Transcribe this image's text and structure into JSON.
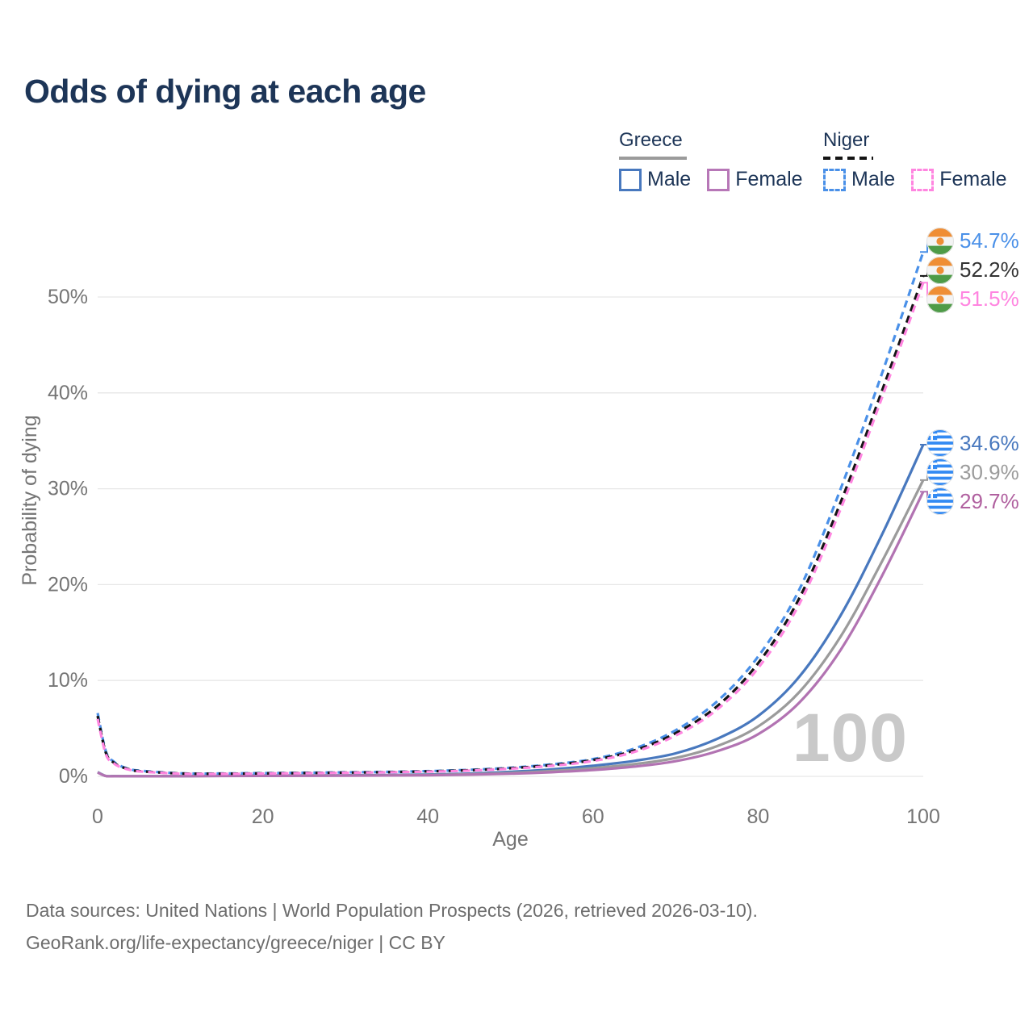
{
  "title": "Odds of dying at each age",
  "watermark": "100",
  "legend": {
    "groups": [
      {
        "name": "Greece",
        "line_style": "solid",
        "rule_color": "#9b9b9b",
        "items": [
          {
            "label": "Male",
            "color": "#4878be"
          },
          {
            "label": "Female",
            "color": "#b777b7"
          }
        ]
      },
      {
        "name": "Niger",
        "line_style": "dashed",
        "rule_color": "#141414",
        "items": [
          {
            "label": "Male",
            "color": "#4a90e8"
          },
          {
            "label": "Female",
            "color": "#ff85e0"
          }
        ]
      }
    ]
  },
  "chart_data": {
    "type": "line",
    "title": "Odds of dying at each age",
    "xlabel": "Age",
    "ylabel": "Probability of dying",
    "xlim": [
      0,
      100
    ],
    "ylim_pct": [
      0,
      57
    ],
    "grid": "horizontal",
    "x_ticks": [
      0,
      20,
      40,
      60,
      80,
      100
    ],
    "y_ticks": [
      0,
      10,
      20,
      30,
      40,
      50
    ],
    "y_tick_labels": [
      "0%",
      "10%",
      "20%",
      "30%",
      "40%",
      "50%"
    ],
    "x": [
      0,
      1,
      2,
      3,
      4,
      5,
      10,
      15,
      20,
      25,
      30,
      35,
      40,
      45,
      50,
      55,
      60,
      65,
      70,
      75,
      80,
      85,
      90,
      95,
      100
    ],
    "series": [
      {
        "id": "niger-male",
        "country": "Niger",
        "sex": "Male",
        "color": "#4a90e8",
        "label_color": "#4a90e8",
        "dash": true,
        "end_label": "54.7%",
        "end_value": 54.7,
        "values": [
          6.6,
          2.6,
          1.5,
          1.0,
          0.75,
          0.6,
          0.32,
          0.3,
          0.34,
          0.38,
          0.42,
          0.47,
          0.55,
          0.68,
          0.9,
          1.25,
          1.8,
          2.9,
          4.8,
          7.8,
          12.5,
          19.5,
          30.0,
          42.0,
          54.7
        ]
      },
      {
        "id": "niger-all",
        "country": "Niger",
        "sex": "Both",
        "color": "#141414",
        "label_color": "#333333",
        "dash": true,
        "end_label": "52.2%",
        "end_value": 52.2,
        "values": [
          6.3,
          2.45,
          1.4,
          0.95,
          0.7,
          0.55,
          0.3,
          0.28,
          0.31,
          0.35,
          0.39,
          0.44,
          0.52,
          0.64,
          0.85,
          1.18,
          1.7,
          2.7,
          4.5,
          7.3,
          11.8,
          18.6,
          28.6,
          40.2,
          52.2
        ]
      },
      {
        "id": "niger-female",
        "country": "Niger",
        "sex": "Female",
        "color": "#ff85e0",
        "label_color": "#ff85e0",
        "dash": true,
        "end_label": "51.5%",
        "end_value": 51.5,
        "values": [
          6.0,
          2.3,
          1.32,
          0.9,
          0.66,
          0.52,
          0.28,
          0.26,
          0.29,
          0.33,
          0.37,
          0.42,
          0.49,
          0.6,
          0.8,
          1.1,
          1.6,
          2.55,
          4.25,
          6.95,
          11.3,
          18.0,
          27.9,
          39.5,
          51.5
        ]
      },
      {
        "id": "greece-male",
        "country": "Greece",
        "sex": "Male",
        "color": "#4878be",
        "label_color": "#4878be",
        "dash": false,
        "end_label": "34.6%",
        "end_value": 34.6,
        "values": [
          0.45,
          0.04,
          0.03,
          0.02,
          0.02,
          0.02,
          0.03,
          0.06,
          0.09,
          0.1,
          0.11,
          0.14,
          0.19,
          0.29,
          0.47,
          0.72,
          1.1,
          1.62,
          2.4,
          3.9,
          6.3,
          10.4,
          16.8,
          25.2,
          34.6
        ]
      },
      {
        "id": "greece-all",
        "country": "Greece",
        "sex": "Both",
        "color": "#9b9b9b",
        "label_color": "#9b9b9b",
        "dash": false,
        "end_label": "30.9%",
        "end_value": 30.9,
        "values": [
          0.42,
          0.035,
          0.025,
          0.02,
          0.018,
          0.018,
          0.025,
          0.05,
          0.07,
          0.08,
          0.09,
          0.11,
          0.15,
          0.23,
          0.36,
          0.56,
          0.86,
          1.28,
          1.92,
          3.15,
          5.2,
          8.8,
          14.6,
          22.4,
          30.9
        ]
      },
      {
        "id": "greece-female",
        "country": "Greece",
        "sex": "Female",
        "color": "#b273b2",
        "label_color": "#b0609f",
        "dash": false,
        "end_label": "29.7%",
        "end_value": 29.7,
        "values": [
          0.4,
          0.03,
          0.02,
          0.018,
          0.015,
          0.015,
          0.02,
          0.04,
          0.05,
          0.06,
          0.07,
          0.09,
          0.12,
          0.18,
          0.28,
          0.43,
          0.66,
          1.02,
          1.58,
          2.62,
          4.4,
          7.7,
          13.2,
          20.9,
          29.7
        ]
      }
    ]
  },
  "footer": {
    "line1": "Data sources: United Nations | World Population Prospects (2026, retrieved 2026-03-10).",
    "line2": "GeoRank.org/life-expectancy/greece/niger | CC BY"
  }
}
